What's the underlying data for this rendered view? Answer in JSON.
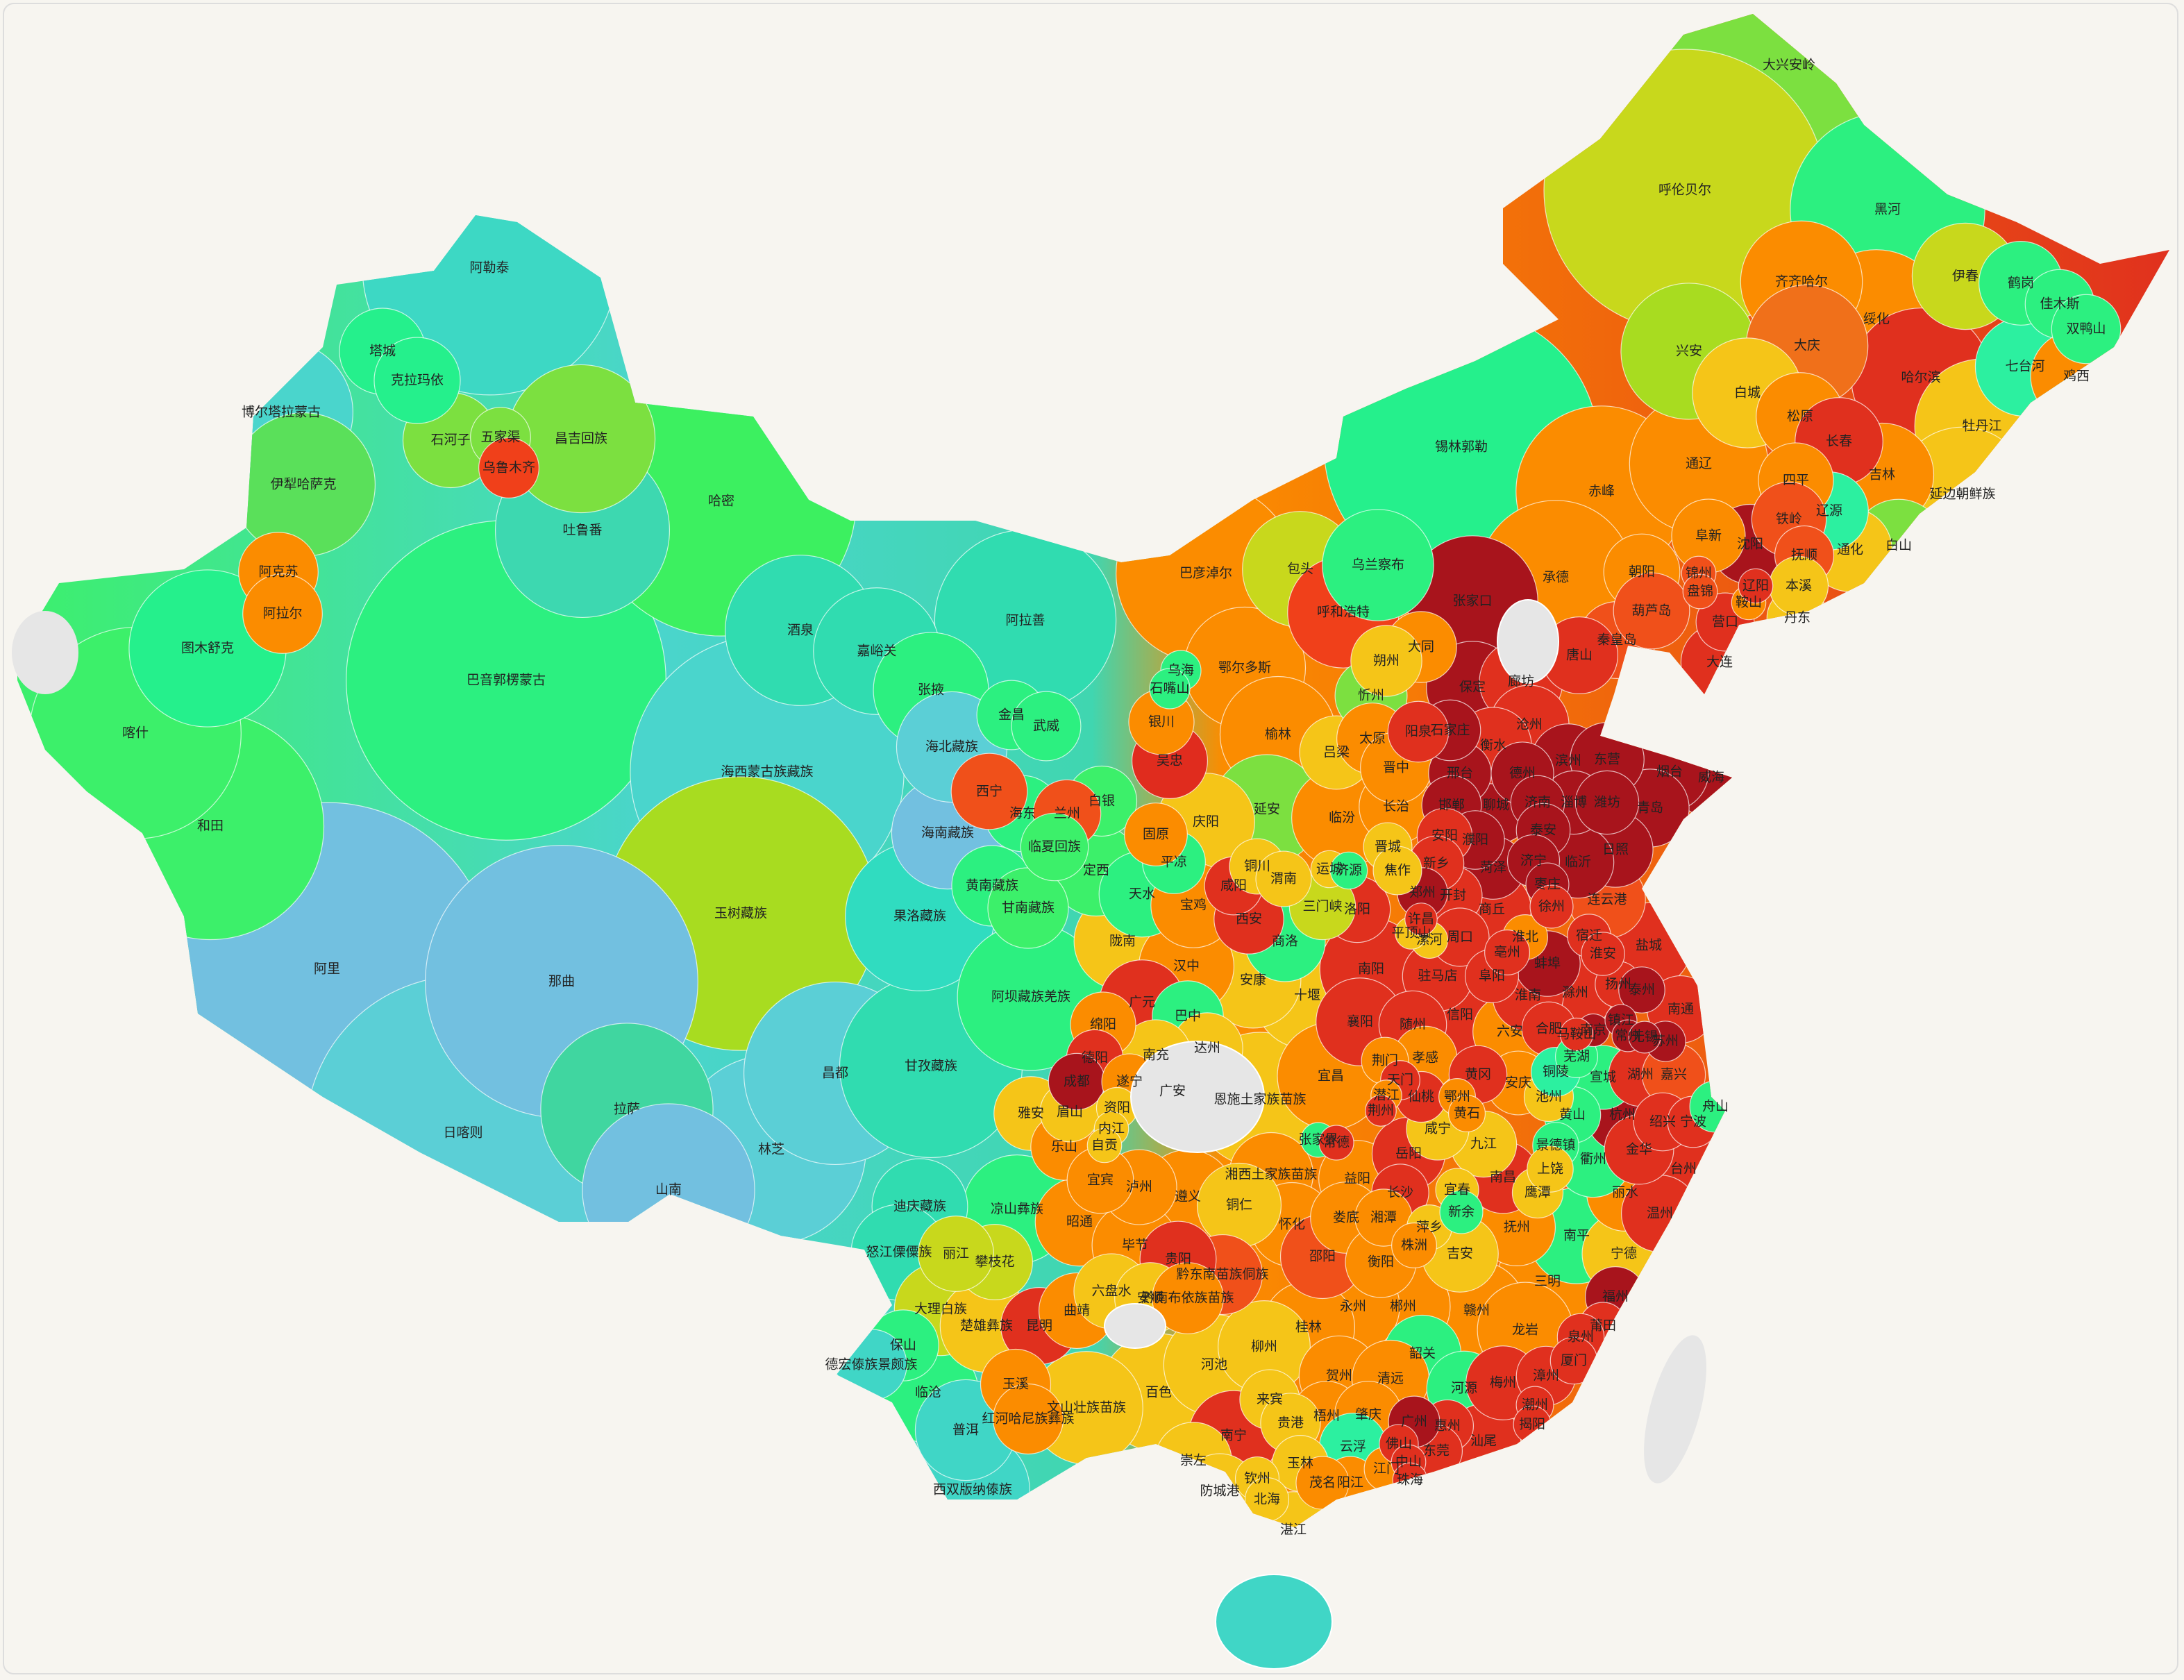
{
  "regions": [
    {
      "name": "阿勒泰",
      "color": "#3dd8c4"
    },
    {
      "name": "塔城",
      "color": "#25f08c"
    },
    {
      "name": "克拉玛依",
      "color": "#25f08c"
    },
    {
      "name": "博尔塔拉蒙古",
      "color": "#4ad5cc"
    },
    {
      "name": "石河子",
      "color": "#7ce040"
    },
    {
      "name": "五家渠",
      "color": "#7ce040"
    },
    {
      "name": "乌鲁木齐",
      "color": "#f0401a"
    },
    {
      "name": "昌吉回族",
      "color": "#7ce040"
    },
    {
      "name": "伊犁哈萨克",
      "color": "#5ae05a"
    },
    {
      "name": "吐鲁番",
      "color": "#3dd8b0"
    },
    {
      "name": "哈密",
      "color": "#3cf060"
    },
    {
      "name": "阿克苏",
      "color": "#fb8c00"
    },
    {
      "name": "阿拉尔",
      "color": "#fb8c00"
    },
    {
      "name": "图木舒克",
      "color": "#25f08c"
    },
    {
      "name": "喀什",
      "color": "#3cf06a"
    },
    {
      "name": "巴音郭楞蒙古",
      "color": "#2cf080"
    },
    {
      "name": "和田",
      "color": "#3cf06a"
    },
    {
      "name": "阿里",
      "color": "#72c0e0"
    },
    {
      "name": "那曲",
      "color": "#72c0e0"
    },
    {
      "name": "日喀则",
      "color": "#5bcfd6"
    },
    {
      "name": "拉萨",
      "color": "#40d6a0"
    },
    {
      "name": "林芝",
      "color": "#5bcfd6"
    },
    {
      "name": "山南",
      "color": "#72c0e0"
    },
    {
      "name": "昌都",
      "color": "#5bcfd6"
    },
    {
      "name": "海西蒙古族藏族",
      "color": "#4ad5cc"
    },
    {
      "name": "玉树藏族",
      "color": "#a8dc20"
    },
    {
      "name": "果洛藏族",
      "color": "#30dcc0"
    },
    {
      "name": "海南藏族",
      "color": "#72c0e0"
    },
    {
      "name": "海北藏族",
      "color": "#5bcfd6"
    },
    {
      "name": "海东",
      "color": "#2cf080"
    },
    {
      "name": "西宁",
      "color": "#f0501a"
    },
    {
      "name": "黄南藏族",
      "color": "#2cf080"
    },
    {
      "name": "酒泉",
      "color": "#30dcb0"
    },
    {
      "name": "嘉峪关",
      "color": "#30dcb0"
    },
    {
      "name": "张掖",
      "color": "#2cf080"
    },
    {
      "name": "金昌",
      "color": "#2cf080"
    },
    {
      "name": "武威",
      "color": "#2cf080"
    },
    {
      "name": "兰州",
      "color": "#f0501a"
    },
    {
      "name": "白银",
      "color": "#3cf06a"
    },
    {
      "name": "临夏回族",
      "color": "#3cf06a"
    },
    {
      "name": "甘南藏族",
      "color": "#3cf06a"
    },
    {
      "name": "定西",
      "color": "#3cf06a"
    },
    {
      "name": "天水",
      "color": "#2cf080"
    },
    {
      "name": "平凉",
      "color": "#2cf080"
    },
    {
      "name": "庆阳",
      "color": "#f5c518"
    },
    {
      "name": "陇南",
      "color": "#f5c518"
    },
    {
      "name": "阿拉善",
      "color": "#30dcb0"
    },
    {
      "name": "巴彦淖尔",
      "color": "#fb8c00"
    },
    {
      "name": "包头",
      "color": "#c8d81c"
    },
    {
      "name": "呼和浩特",
      "color": "#f0401a"
    },
    {
      "name": "乌兰察布",
      "color": "#2cf080"
    },
    {
      "name": "锡林郭勒",
      "color": "#25f08c"
    },
    {
      "name": "赤峰",
      "color": "#fb8c00"
    },
    {
      "name": "通辽",
      "color": "#fb8c00"
    },
    {
      "name": "兴安",
      "color": "#a8dc20"
    },
    {
      "name": "呼伦贝尔",
      "color": "#c8d81c"
    },
    {
      "name": "鄂尔多斯",
      "color": "#fb8c00"
    },
    {
      "name": "乌海",
      "color": "#2cf080"
    },
    {
      "name": "石嘴山",
      "color": "#2cf080"
    },
    {
      "name": "银川",
      "color": "#fb8c00"
    },
    {
      "name": "吴忠",
      "color": "#e02c1e"
    },
    {
      "name": "固原",
      "color": "#fb8c00"
    },
    {
      "name": "大兴安岭",
      "color": "#7ce040"
    },
    {
      "name": "黑河",
      "color": "#2cf080"
    },
    {
      "name": "伊春",
      "color": "#c8d81c"
    },
    {
      "name": "鹤岗",
      "color": "#2cf080"
    },
    {
      "name": "佳木斯",
      "color": "#2cf080"
    },
    {
      "name": "双鸭山",
      "color": "#2cf080"
    },
    {
      "name": "齐齐哈尔",
      "color": "#fb8c00"
    },
    {
      "name": "绥化",
      "color": "#fb8c00"
    },
    {
      "name": "大庆",
      "color": "#f0701a"
    },
    {
      "name": "七台河",
      "color": "#2cf0a0"
    },
    {
      "name": "鸡西",
      "color": "#fb8c00"
    },
    {
      "name": "哈尔滨",
      "color": "#e0301e"
    },
    {
      "name": "牡丹江",
      "color": "#f5c518"
    },
    {
      "name": "白城",
      "color": "#f5c518"
    },
    {
      "name": "松原",
      "color": "#fb8c00"
    },
    {
      "name": "长春",
      "color": "#e0301e"
    },
    {
      "name": "吉林",
      "color": "#fb8c00"
    },
    {
      "name": "延边朝鲜族",
      "color": "#f5c518"
    },
    {
      "name": "四平",
      "color": "#fb8c00"
    },
    {
      "name": "辽源",
      "color": "#2cf0a0"
    },
    {
      "name": "通化",
      "color": "#f5c518"
    },
    {
      "name": "白山",
      "color": "#7ce040"
    },
    {
      "name": "铁岭",
      "color": "#f0501a"
    },
    {
      "name": "沈阳",
      "color": "#a8141c"
    },
    {
      "name": "抚顺",
      "color": "#f0501a"
    },
    {
      "name": "本溪",
      "color": "#f5c518"
    },
    {
      "name": "阜新",
      "color": "#fb8c00"
    },
    {
      "name": "朝阳",
      "color": "#fb8c00"
    },
    {
      "name": "锦州",
      "color": "#f0501a"
    },
    {
      "name": "盘锦",
      "color": "#f0501a"
    },
    {
      "name": "鞍山",
      "color": "#fb8c00"
    },
    {
      "name": "辽阳",
      "color": "#e0301e"
    },
    {
      "name": "营口",
      "color": "#e0301e"
    },
    {
      "name": "丹东",
      "color": "#f5c518"
    },
    {
      "name": "葫芦岛",
      "color": "#f0501a"
    },
    {
      "name": "大连",
      "color": "#e0301e"
    },
    {
      "name": "承德",
      "color": "#fb8c00"
    },
    {
      "name": "张家口",
      "color": "#a8141c"
    },
    {
      "name": "秦皇岛",
      "color": "#f0501a"
    },
    {
      "name": "唐山",
      "color": "#e0301e"
    },
    {
      "name": "大同",
      "color": "#fb8c00"
    },
    {
      "name": "朔州",
      "color": "#f5c518"
    },
    {
      "name": "忻州",
      "color": "#7ce040"
    },
    {
      "name": "保定",
      "color": "#a8141c"
    },
    {
      "name": "廊坊",
      "color": "#e0301e"
    },
    {
      "name": "沧州",
      "color": "#e0301e"
    },
    {
      "name": "衡水",
      "color": "#e0301e"
    },
    {
      "name": "石家庄",
      "color": "#a8141c"
    },
    {
      "name": "阳泉",
      "color": "#e0301e"
    },
    {
      "name": "太原",
      "color": "#fb8c00"
    },
    {
      "name": "吕梁",
      "color": "#f5c518"
    },
    {
      "name": "晋中",
      "color": "#fb8c00"
    },
    {
      "name": "邢台",
      "color": "#a8141c"
    },
    {
      "name": "德州",
      "color": "#a8141c"
    },
    {
      "name": "长治",
      "color": "#fb8c00"
    },
    {
      "name": "邯郸",
      "color": "#a8141c"
    },
    {
      "name": "聊城",
      "color": "#a8141c"
    },
    {
      "name": "临汾",
      "color": "#fb8c00"
    },
    {
      "name": "晋城",
      "color": "#f5c518"
    },
    {
      "name": "安阳",
      "color": "#e0301e"
    },
    {
      "name": "濮阳",
      "color": "#a8141c"
    },
    {
      "name": "运城",
      "color": "#f5c518"
    },
    {
      "name": "新乡",
      "color": "#e0301e"
    },
    {
      "name": "济源",
      "color": "#2cf080"
    },
    {
      "name": "焦作",
      "color": "#f5c518"
    },
    {
      "name": "榆林",
      "color": "#fb8c00"
    },
    {
      "name": "延安",
      "color": "#7ce040"
    },
    {
      "name": "滨州",
      "color": "#a8141c"
    },
    {
      "name": "东营",
      "color": "#a8141c"
    },
    {
      "name": "烟台",
      "color": "#a8141c"
    },
    {
      "name": "威海",
      "color": "#a8141c"
    },
    {
      "name": "淄博",
      "color": "#a8141c"
    },
    {
      "name": "潍坊",
      "color": "#a8141c"
    },
    {
      "name": "青岛",
      "color": "#a8141c"
    },
    {
      "name": "济南",
      "color": "#a8141c"
    },
    {
      "name": "泰安",
      "color": "#a8141c"
    },
    {
      "name": "菏泽",
      "color": "#a8141c"
    },
    {
      "name": "济宁",
      "color": "#a8141c"
    },
    {
      "name": "临沂",
      "color": "#a8141c"
    },
    {
      "name": "日照",
      "color": "#a8141c"
    },
    {
      "name": "枣庄",
      "color": "#a8141c"
    },
    {
      "name": "郑州",
      "color": "#a8141c"
    },
    {
      "name": "开封",
      "color": "#e0301e"
    },
    {
      "name": "洛阳",
      "color": "#e0301e"
    },
    {
      "name": "三门峡",
      "color": "#c8d81c"
    },
    {
      "name": "商丘",
      "color": "#e0301e"
    },
    {
      "name": "徐州",
      "color": "#e0301e"
    },
    {
      "name": "连云港",
      "color": "#f0501a"
    },
    {
      "name": "宿迁",
      "color": "#e0301e"
    },
    {
      "name": "平顶山",
      "color": "#f5c518"
    },
    {
      "name": "许昌",
      "color": "#e0301e"
    },
    {
      "name": "漯河",
      "color": "#f5c518"
    },
    {
      "name": "周口",
      "color": "#e0301e"
    },
    {
      "name": "淮北",
      "color": "#fb8c00"
    },
    {
      "name": "亳州",
      "color": "#e0301e"
    },
    {
      "name": "盐城",
      "color": "#e0301e"
    },
    {
      "name": "淮安",
      "color": "#e0301e"
    },
    {
      "name": "蚌埠",
      "color": "#a8141c"
    },
    {
      "name": "南阳",
      "color": "#e0301e"
    },
    {
      "name": "驻马店",
      "color": "#e0301e"
    },
    {
      "name": "阜阳",
      "color": "#e0301e"
    },
    {
      "name": "滁州",
      "color": "#e0301e"
    },
    {
      "name": "扬州",
      "color": "#e0301e"
    },
    {
      "name": "泰州",
      "color": "#a8141c"
    },
    {
      "name": "南通",
      "color": "#e0301e"
    },
    {
      "name": "淮南",
      "color": "#e0301e"
    },
    {
      "name": "信阳",
      "color": "#e0301e"
    },
    {
      "name": "六安",
      "color": "#fb8c00"
    },
    {
      "name": "合肥",
      "color": "#e0301e"
    },
    {
      "name": "南京",
      "color": "#a8141c"
    },
    {
      "name": "镇江",
      "color": "#a8141c"
    },
    {
      "name": "常州",
      "color": "#a8141c"
    },
    {
      "name": "无锡",
      "color": "#a8141c"
    },
    {
      "name": "苏州",
      "color": "#a8141c"
    },
    {
      "name": "马鞍山",
      "color": "#e0301e"
    },
    {
      "name": "芜湖",
      "color": "#2cf080"
    },
    {
      "name": "铜陵",
      "color": "#2cf0a0"
    },
    {
      "name": "宣城",
      "color": "#2cf080"
    },
    {
      "name": "安庆",
      "color": "#fb8c00"
    },
    {
      "name": "池州",
      "color": "#f5c518"
    },
    {
      "name": "黄山",
      "color": "#2cf080"
    },
    {
      "name": "湖州",
      "color": "#e0301e"
    },
    {
      "name": "嘉兴",
      "color": "#f0501a"
    },
    {
      "name": "杭州",
      "color": "#a8141c"
    },
    {
      "name": "绍兴",
      "color": "#e0301e"
    },
    {
      "name": "宁波",
      "color": "#e0301e"
    },
    {
      "name": "舟山",
      "color": "#2cf080"
    },
    {
      "name": "金华",
      "color": "#e0301e"
    },
    {
      "name": "衢州",
      "color": "#2cf080"
    },
    {
      "name": "台州",
      "color": "#e0301e"
    },
    {
      "name": "丽水",
      "color": "#fb8c00"
    },
    {
      "name": "温州",
      "color": "#e0301e"
    },
    {
      "name": "十堰",
      "color": "#f5c518"
    },
    {
      "name": "襄阳",
      "color": "#e0301e"
    },
    {
      "name": "随州",
      "color": "#e0301e"
    },
    {
      "name": "孝感",
      "color": "#fb8c00"
    },
    {
      "name": "荆门",
      "color": "#fb8c00"
    },
    {
      "name": "天门",
      "color": "#e0301e"
    },
    {
      "name": "黄冈",
      "color": "#e0301e"
    },
    {
      "name": "宜昌",
      "color": "#fb8c00"
    },
    {
      "name": "潜江",
      "color": "#fb8c00"
    },
    {
      "name": "荆州",
      "color": "#e0301e"
    },
    {
      "name": "仙桃",
      "color": "#e0301e"
    },
    {
      "name": "鄂州",
      "color": "#fb8c00"
    },
    {
      "name": "黄石",
      "color": "#fb8c00"
    },
    {
      "name": "咸宁",
      "color": "#f5c518"
    },
    {
      "name": "九江",
      "color": "#f5c518"
    },
    {
      "name": "景德镇",
      "color": "#2cf080"
    },
    {
      "name": "上饶",
      "color": "#f5c518"
    },
    {
      "name": "鹰潭",
      "color": "#f5c518"
    },
    {
      "name": "恩施土家族苗族",
      "color": "#f5c518"
    },
    {
      "name": "张家界",
      "color": "#2cf080"
    },
    {
      "name": "常德",
      "color": "#e0301e"
    },
    {
      "name": "岳阳",
      "color": "#e0301e"
    },
    {
      "name": "湘西土家族苗族",
      "color": "#fb8c00"
    },
    {
      "name": "益阳",
      "color": "#fb8c00"
    },
    {
      "name": "宜春",
      "color": "#f5c518"
    },
    {
      "name": "南昌",
      "color": "#e0301e"
    },
    {
      "name": "长沙",
      "color": "#e0301e"
    },
    {
      "name": "新余",
      "color": "#2cf080"
    },
    {
      "name": "湘潭",
      "color": "#fb8c00"
    },
    {
      "name": "萍乡",
      "color": "#f5c518"
    },
    {
      "name": "娄底",
      "color": "#fb8c00"
    },
    {
      "name": "怀化",
      "color": "#fb8c00"
    },
    {
      "name": "抚州",
      "color": "#fb8c00"
    },
    {
      "name": "株洲",
      "color": "#fb8c00"
    },
    {
      "name": "吉安",
      "color": "#f5c518"
    },
    {
      "name": "邵阳",
      "color": "#f0501a"
    },
    {
      "name": "衡阳",
      "color": "#fb8c00"
    },
    {
      "name": "永州",
      "color": "#fb8c00"
    },
    {
      "name": "郴州",
      "color": "#fb8c00"
    },
    {
      "name": "赣州",
      "color": "#fb8c00"
    },
    {
      "name": "南平",
      "color": "#2cf080"
    },
    {
      "name": "宁德",
      "color": "#f5c518"
    },
    {
      "name": "三明",
      "color": "#fb8c00"
    },
    {
      "name": "福州",
      "color": "#a8141c"
    },
    {
      "name": "龙岩",
      "color": "#fb8c00"
    },
    {
      "name": "莆田",
      "color": "#e0301e"
    },
    {
      "name": "泉州",
      "color": "#e0301e"
    },
    {
      "name": "漳州",
      "color": "#e0301e"
    },
    {
      "name": "厦门",
      "color": "#e0301e"
    },
    {
      "name": "梅州",
      "color": "#e0301e"
    },
    {
      "name": "潮州",
      "color": "#e0301e"
    },
    {
      "name": "揭阳",
      "color": "#e0301e"
    },
    {
      "name": "汕尾",
      "color": "#e0301e"
    },
    {
      "name": "河源",
      "color": "#2cf080"
    },
    {
      "name": "韶关",
      "color": "#2cf080"
    },
    {
      "name": "清远",
      "color": "#fb8c00"
    },
    {
      "name": "惠州",
      "color": "#e0301e"
    },
    {
      "name": "广州",
      "color": "#a8141c"
    },
    {
      "name": "肇庆",
      "color": "#fb8c00"
    },
    {
      "name": "佛山",
      "color": "#e0301e"
    },
    {
      "name": "东莞",
      "color": "#e0301e"
    },
    {
      "name": "中山",
      "color": "#e0301e"
    },
    {
      "name": "江门",
      "color": "#fb8c00"
    },
    {
      "name": "珠海",
      "color": "#e0301e"
    },
    {
      "name": "云浮",
      "color": "#2cf0a0"
    },
    {
      "name": "阳江",
      "color": "#fb8c00"
    },
    {
      "name": "茂名",
      "color": "#fb8c00"
    },
    {
      "name": "湛江",
      "color": "#f5c518"
    },
    {
      "name": "贺州",
      "color": "#fb8c00"
    },
    {
      "name": "桂林",
      "color": "#fb8c00"
    },
    {
      "name": "柳州",
      "color": "#f5c518"
    },
    {
      "name": "河池",
      "color": "#f5c518"
    },
    {
      "name": "来宾",
      "color": "#f5c518"
    },
    {
      "name": "梧州",
      "color": "#fb8c00"
    },
    {
      "name": "贵港",
      "color": "#f5c518"
    },
    {
      "name": "百色",
      "color": "#f5c518"
    },
    {
      "name": "南宁",
      "color": "#e0301e"
    },
    {
      "name": "崇左",
      "color": "#f5c518"
    },
    {
      "name": "钦州",
      "color": "#f5c518"
    },
    {
      "name": "玉林",
      "color": "#f5c518"
    },
    {
      "name": "防城港",
      "color": "#f5c518"
    },
    {
      "name": "北海",
      "color": "#f5c518"
    },
    {
      "name": "汉中",
      "color": "#fb8c00"
    },
    {
      "name": "安康",
      "color": "#f5c518"
    },
    {
      "name": "宝鸡",
      "color": "#fb8c00"
    },
    {
      "name": "咸阳",
      "color": "#e0301e"
    },
    {
      "name": "铜川",
      "color": "#f5c518"
    },
    {
      "name": "渭南",
      "color": "#f5c518"
    },
    {
      "name": "西安",
      "color": "#e0301e"
    },
    {
      "name": "商洛",
      "color": "#2cf080"
    },
    {
      "name": "广元",
      "color": "#e0301e"
    },
    {
      "name": "巴中",
      "color": "#2cf080"
    },
    {
      "name": "达州",
      "color": "#f5c518"
    },
    {
      "name": "绵阳",
      "color": "#fb8c00"
    },
    {
      "name": "南充",
      "color": "#f5c518"
    },
    {
      "name": "德阳",
      "color": "#e0301e"
    },
    {
      "name": "成都",
      "color": "#a8141c"
    },
    {
      "name": "遂宁",
      "color": "#fb8c00"
    },
    {
      "name": "广安",
      "color": "#f5c518"
    },
    {
      "name": "资阳",
      "color": "#f5c518"
    },
    {
      "name": "眉山",
      "color": "#f5c518"
    },
    {
      "name": "内江",
      "color": "#f5c518"
    },
    {
      "name": "雅安",
      "color": "#f5c518"
    },
    {
      "name": "乐山",
      "color": "#fb8c00"
    },
    {
      "name": "自贡",
      "color": "#f5c518"
    },
    {
      "name": "宜宾",
      "color": "#fb8c00"
    },
    {
      "name": "泸州",
      "color": "#fb8c00"
    },
    {
      "name": "遵义",
      "color": "#fb8c00"
    },
    {
      "name": "铜仁",
      "color": "#f5c518"
    },
    {
      "name": "阿坝藏族羌族",
      "color": "#2cf080"
    },
    {
      "name": "甘孜藏族",
      "color": "#30dcb0"
    },
    {
      "name": "凉山彝族",
      "color": "#2cf080"
    },
    {
      "name": "攀枝花",
      "color": "#c8d81c"
    },
    {
      "name": "丽江",
      "color": "#c8d81c"
    },
    {
      "name": "迪庆藏族",
      "color": "#30dcb0"
    },
    {
      "name": "怒江傈僳族",
      "color": "#30dcb0"
    },
    {
      "name": "大理白族",
      "color": "#c8d81c"
    },
    {
      "name": "楚雄彝族",
      "color": "#f5c518"
    },
    {
      "name": "保山",
      "color": "#2cf080"
    },
    {
      "name": "德宏傣族景颇族",
      "color": "#40d6c6"
    },
    {
      "name": "临沧",
      "color": "#2cf080"
    },
    {
      "name": "普洱",
      "color": "#40d6c6"
    },
    {
      "name": "西双版纳傣族",
      "color": "#40d6c6"
    },
    {
      "name": "玉溪",
      "color": "#fb8c00"
    },
    {
      "name": "昆明",
      "color": "#e0301e"
    },
    {
      "name": "曲靖",
      "color": "#fb8c00"
    },
    {
      "name": "红河哈尼族彝族",
      "color": "#fb8c00"
    },
    {
      "name": "文山壮族苗族",
      "color": "#f5c518"
    },
    {
      "name": "昭通",
      "color": "#fb8c00"
    },
    {
      "name": "毕节",
      "color": "#fb8c00"
    },
    {
      "name": "六盘水",
      "color": "#f5c518"
    },
    {
      "name": "安顺",
      "color": "#f5c518"
    },
    {
      "name": "贵阳",
      "color": "#e0301e"
    },
    {
      "name": "黔南布依族苗族",
      "color": "#fb8c00"
    },
    {
      "name": "黔东南苗族侗族",
      "color": "#f0501a"
    }
  ]
}
